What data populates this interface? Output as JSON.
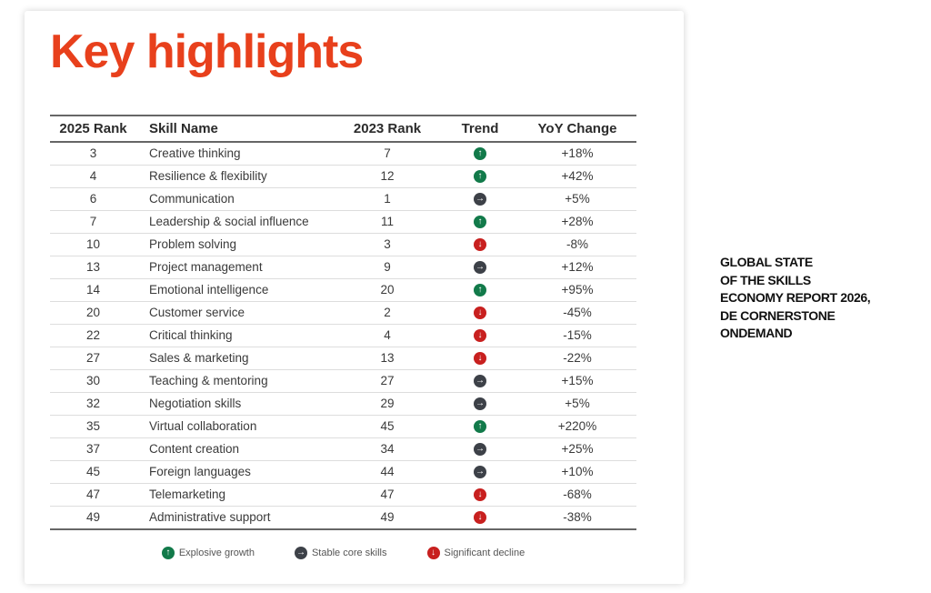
{
  "title": "Key highlights",
  "colors": {
    "title": "#e8401c",
    "up": "#127a4a",
    "stable": "#3d4148",
    "down": "#c8201f"
  },
  "table": {
    "headers": [
      "2025 Rank",
      "Skill Name",
      "2023 Rank",
      "Trend",
      "YoY Change"
    ],
    "rows": [
      {
        "rank2025": "3",
        "skill": "Creative thinking",
        "rank2023": "7",
        "trend": "up",
        "yoy": "+18%"
      },
      {
        "rank2025": "4",
        "skill": "Resilience & flexibility",
        "rank2023": "12",
        "trend": "up",
        "yoy": "+42%"
      },
      {
        "rank2025": "6",
        "skill": "Communication",
        "rank2023": "1",
        "trend": "stable",
        "yoy": "+5%"
      },
      {
        "rank2025": "7",
        "skill": "Leadership & social influence",
        "rank2023": "11",
        "trend": "up",
        "yoy": "+28%"
      },
      {
        "rank2025": "10",
        "skill": "Problem solving",
        "rank2023": "3",
        "trend": "down",
        "yoy": "-8%"
      },
      {
        "rank2025": "13",
        "skill": "Project management",
        "rank2023": "9",
        "trend": "stable",
        "yoy": "+12%"
      },
      {
        "rank2025": "14",
        "skill": "Emotional intelligence",
        "rank2023": "20",
        "trend": "up",
        "yoy": "+95%"
      },
      {
        "rank2025": "20",
        "skill": "Customer service",
        "rank2023": "2",
        "trend": "down",
        "yoy": "-45%"
      },
      {
        "rank2025": "22",
        "skill": "Critical thinking",
        "rank2023": "4",
        "trend": "down",
        "yoy": "-15%"
      },
      {
        "rank2025": "27",
        "skill": "Sales & marketing",
        "rank2023": "13",
        "trend": "down",
        "yoy": "-22%"
      },
      {
        "rank2025": "30",
        "skill": "Teaching & mentoring",
        "rank2023": "27",
        "trend": "stable",
        "yoy": "+15%"
      },
      {
        "rank2025": "32",
        "skill": "Negotiation skills",
        "rank2023": "29",
        "trend": "stable",
        "yoy": "+5%"
      },
      {
        "rank2025": "35",
        "skill": "Virtual collaboration",
        "rank2023": "45",
        "trend": "up",
        "yoy": "+220%"
      },
      {
        "rank2025": "37",
        "skill": "Content creation",
        "rank2023": "34",
        "trend": "stable",
        "yoy": "+25%"
      },
      {
        "rank2025": "45",
        "skill": "Foreign languages",
        "rank2023": "44",
        "trend": "stable",
        "yoy": "+10%"
      },
      {
        "rank2025": "47",
        "skill": "Telemarketing",
        "rank2023": "47",
        "trend": "down",
        "yoy": "-68%"
      },
      {
        "rank2025": "49",
        "skill": "Administrative support",
        "rank2023": "49",
        "trend": "down",
        "yoy": "-38%"
      }
    ]
  },
  "legend": [
    {
      "trend": "up",
      "label": "Explosive growth"
    },
    {
      "trend": "stable",
      "label": "Stable core skills"
    },
    {
      "trend": "down",
      "label": "Significant decline"
    }
  ],
  "source_note": [
    "GLOBAL STATE",
    "OF THE SKILLS",
    "ECONOMY REPORT 2026,",
    "DE CORNERSTONE",
    "ONDEMAND"
  ]
}
